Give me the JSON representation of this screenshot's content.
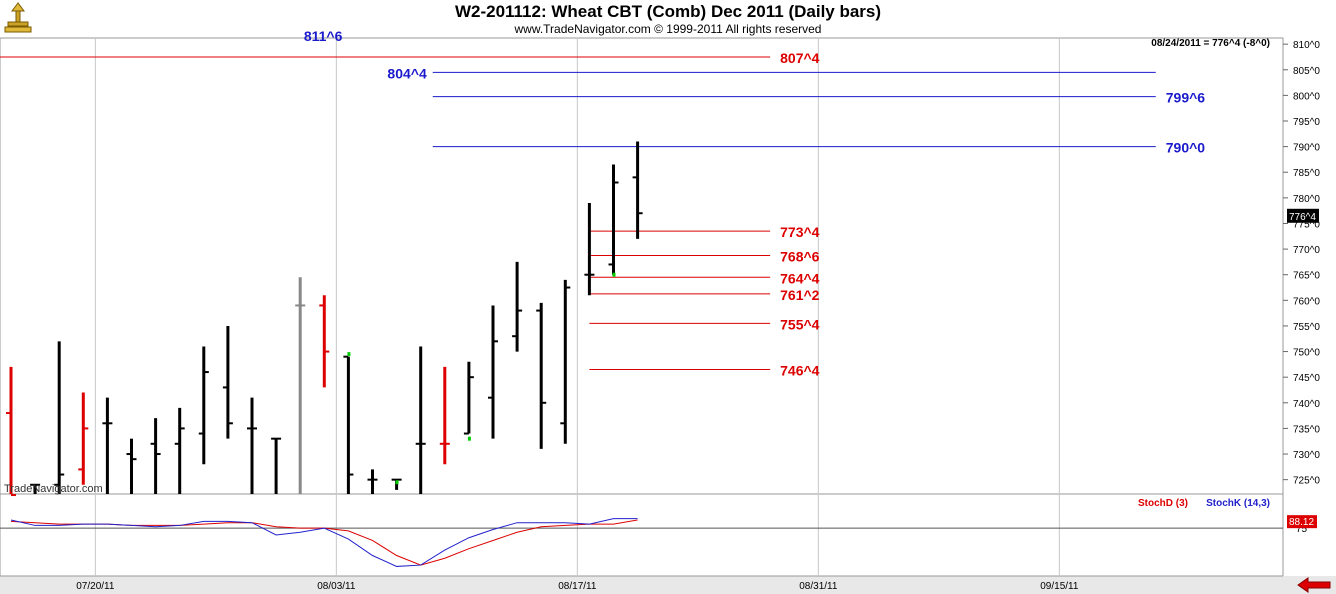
{
  "header": {
    "title": "W2-201112:  Wheat CBT (Comb) Dec 2011  (Daily bars)",
    "subtitle": "www.TradeNavigator.com © 1999-2011 All rights reserved",
    "readout": "08/24/2011 = 776^4 (-8^0)",
    "watermark": "TradeNavigator.com"
  },
  "chart_data": [
    {
      "type": "ohlc",
      "title": "W2-201112:  Wheat CBT (Comb) Dec 2011  (Daily bars)",
      "price_unit_note": "prices in cents; ^N = eighths",
      "y_tick_labels": [
        "725^0",
        "730^0",
        "735^0",
        "740^0",
        "745^0",
        "750^0",
        "755^0",
        "760^0",
        "765^0",
        "770^0",
        "775^0",
        "780^0",
        "785^0",
        "790^0",
        "795^0",
        "800^0",
        "805^0",
        "810^0"
      ],
      "y_tick_values": [
        725,
        730,
        735,
        740,
        745,
        750,
        755,
        760,
        765,
        770,
        775,
        780,
        785,
        790,
        795,
        800,
        805,
        810
      ],
      "ylim": [
        722.2,
        811.2
      ],
      "x_tick_labels": [
        "07/20/11",
        "08/03/11",
        "08/17/11",
        "08/31/11",
        "09/15/11"
      ],
      "x_tick_index": [
        3.5,
        13.5,
        23.5,
        33.5,
        43.5
      ],
      "last_price_label": "776^4",
      "last_price": 776.5,
      "colors": {
        "up": "#000000",
        "down": "#dd0000",
        "neutral": "#888888",
        "marker": "#00cc00"
      },
      "bars": [
        {
          "i": 0,
          "date": "07/13",
          "h": 747,
          "l": 722,
          "o": 738,
          "c": 722,
          "color": "down"
        },
        {
          "i": 1,
          "date": "07/14",
          "h": 724,
          "l": 722,
          "o": 724,
          "c": 724,
          "color": "up"
        },
        {
          "i": 2,
          "date": "07/15",
          "h": 752,
          "l": 722,
          "o": 724,
          "c": 726,
          "color": "up"
        },
        {
          "i": 3,
          "date": "07/18",
          "h": 742,
          "l": 724,
          "o": 727,
          "c": 735,
          "color": "down"
        },
        {
          "i": 4,
          "date": "07/19",
          "h": 741,
          "l": 722,
          "o": 736,
          "c": 736,
          "color": "up"
        },
        {
          "i": 5,
          "date": "07/20",
          "h": 733,
          "l": 722,
          "o": 730,
          "c": 729,
          "color": "up"
        },
        {
          "i": 6,
          "date": "07/21",
          "h": 737,
          "l": 722,
          "o": 732,
          "c": 730,
          "color": "up"
        },
        {
          "i": 7,
          "date": "07/22",
          "h": 739,
          "l": 722,
          "o": 732,
          "c": 735,
          "color": "up"
        },
        {
          "i": 8,
          "date": "07/25",
          "h": 751,
          "l": 728,
          "o": 734,
          "c": 746,
          "color": "up"
        },
        {
          "i": 9,
          "date": "07/26",
          "h": 755,
          "l": 733,
          "o": 743,
          "c": 736,
          "color": "up"
        },
        {
          "i": 10,
          "date": "07/27",
          "h": 741,
          "l": 722,
          "o": 735,
          "c": 735,
          "color": "up"
        },
        {
          "i": 11,
          "date": "07/28",
          "h": 733,
          "l": 722,
          "o": 733,
          "c": 733,
          "color": "up"
        },
        {
          "i": 12,
          "date": "07/29",
          "h": 764.5,
          "l": 722,
          "o": 759,
          "c": 759,
          "color": "neutral"
        },
        {
          "i": 13,
          "date": "08/01",
          "h": 761,
          "l": 743,
          "o": 759,
          "c": 750,
          "color": "down"
        },
        {
          "i": 14,
          "date": "08/02",
          "h": 749,
          "l": 722,
          "o": 749,
          "c": 726,
          "color": "up",
          "marker": 749.5
        },
        {
          "i": 15,
          "date": "08/03",
          "h": 727,
          "l": 722,
          "o": 725,
          "c": 725,
          "color": "up"
        },
        {
          "i": 16,
          "date": "08/04",
          "h": 725,
          "l": 723,
          "o": 725,
          "c": 725,
          "color": "up",
          "marker": 724.5
        },
        {
          "i": 17,
          "date": "08/05",
          "h": 751,
          "l": 722,
          "o": 732,
          "c": 732,
          "color": "up"
        },
        {
          "i": 18,
          "date": "08/08",
          "h": 747,
          "l": 728,
          "o": 732,
          "c": 732,
          "color": "down"
        },
        {
          "i": 19,
          "date": "08/09",
          "h": 748,
          "l": 734,
          "o": 734,
          "c": 745,
          "color": "up",
          "marker": 733
        },
        {
          "i": 20,
          "date": "08/10",
          "h": 759,
          "l": 733,
          "o": 741,
          "c": 752,
          "color": "up"
        },
        {
          "i": 21,
          "date": "08/11",
          "h": 767.5,
          "l": 750,
          "o": 753,
          "c": 758,
          "color": "up"
        },
        {
          "i": 22,
          "date": "08/12",
          "h": 759.5,
          "l": 731,
          "o": 758,
          "c": 740,
          "color": "up"
        },
        {
          "i": 23,
          "date": "08/15",
          "h": 764,
          "l": 732,
          "o": 736,
          "c": 762.5,
          "color": "up"
        },
        {
          "i": 24,
          "date": "08/16",
          "h": 779,
          "l": 761,
          "o": 765,
          "c": 765,
          "color": "up"
        },
        {
          "i": 25,
          "date": "08/17",
          "h": 786.5,
          "l": 765,
          "o": 767,
          "c": 783,
          "color": "up",
          "marker": 765
        },
        {
          "i": 26,
          "date": "08/18",
          "h": 791,
          "l": 772,
          "o": 784,
          "c": 777,
          "color": "up"
        }
      ],
      "levels": [
        {
          "label": "811^6",
          "value": 811.75,
          "color": "blue",
          "x_from": 14,
          "x_to": 14,
          "label_side": "left"
        },
        {
          "label": "807^4",
          "value": 807.5,
          "color": "red",
          "x_from": -1,
          "x_to": 31.5,
          "label_side": "right"
        },
        {
          "label": "804^4",
          "value": 804.5,
          "color": "blue",
          "x_from": 17.5,
          "x_to": 47.5,
          "label_side": "left"
        },
        {
          "label": "799^6",
          "value": 799.75,
          "color": "blue",
          "x_from": 17.5,
          "x_to": 47.5,
          "label_side": "right"
        },
        {
          "label": "790^0",
          "value": 790,
          "color": "blue",
          "x_from": 17.5,
          "x_to": 47.5,
          "label_side": "right"
        },
        {
          "label": "773^4",
          "value": 773.5,
          "color": "red",
          "x_from": 24,
          "x_to": 31.5,
          "label_side": "right"
        },
        {
          "label": "768^6",
          "value": 768.75,
          "color": "red",
          "x_from": 24,
          "x_to": 31.5,
          "label_side": "right"
        },
        {
          "label": "764^4",
          "value": 764.5,
          "color": "red",
          "x_from": 24,
          "x_to": 31.5,
          "label_side": "right"
        },
        {
          "label": "761^2",
          "value": 761.25,
          "color": "red",
          "x_from": 24,
          "x_to": 31.5,
          "label_side": "right"
        },
        {
          "label": "755^4",
          "value": 755.5,
          "color": "red",
          "x_from": 24,
          "x_to": 31.5,
          "label_side": "right"
        },
        {
          "label": "746^4",
          "value": 746.5,
          "color": "red",
          "x_from": 24,
          "x_to": 31.5,
          "label_side": "right"
        }
      ]
    },
    {
      "type": "line",
      "title": "",
      "series": [
        {
          "name": "StochD (3)",
          "color": "#dd0000",
          "values": [
            80,
            79,
            78,
            78,
            78,
            77,
            77,
            77,
            78,
            79,
            79,
            76,
            75,
            75,
            73,
            66,
            55,
            48,
            53,
            60,
            66,
            72,
            76,
            77,
            78,
            78,
            81
          ]
        },
        {
          "name": "StochK (14,3)",
          "color": "#2222cc",
          "values": [
            81,
            77,
            77,
            78,
            78,
            77,
            76,
            77,
            80,
            80,
            79,
            70,
            72,
            75,
            67,
            55,
            47,
            48,
            59,
            68,
            74,
            79,
            79,
            79,
            78,
            82,
            82
          ]
        }
      ],
      "y_tick_labels": [
        "75"
      ],
      "y_tick_values": [
        75
      ],
      "ylim": [
        40,
        100
      ],
      "reference_line": 75,
      "last_value_label": "88.12"
    }
  ]
}
